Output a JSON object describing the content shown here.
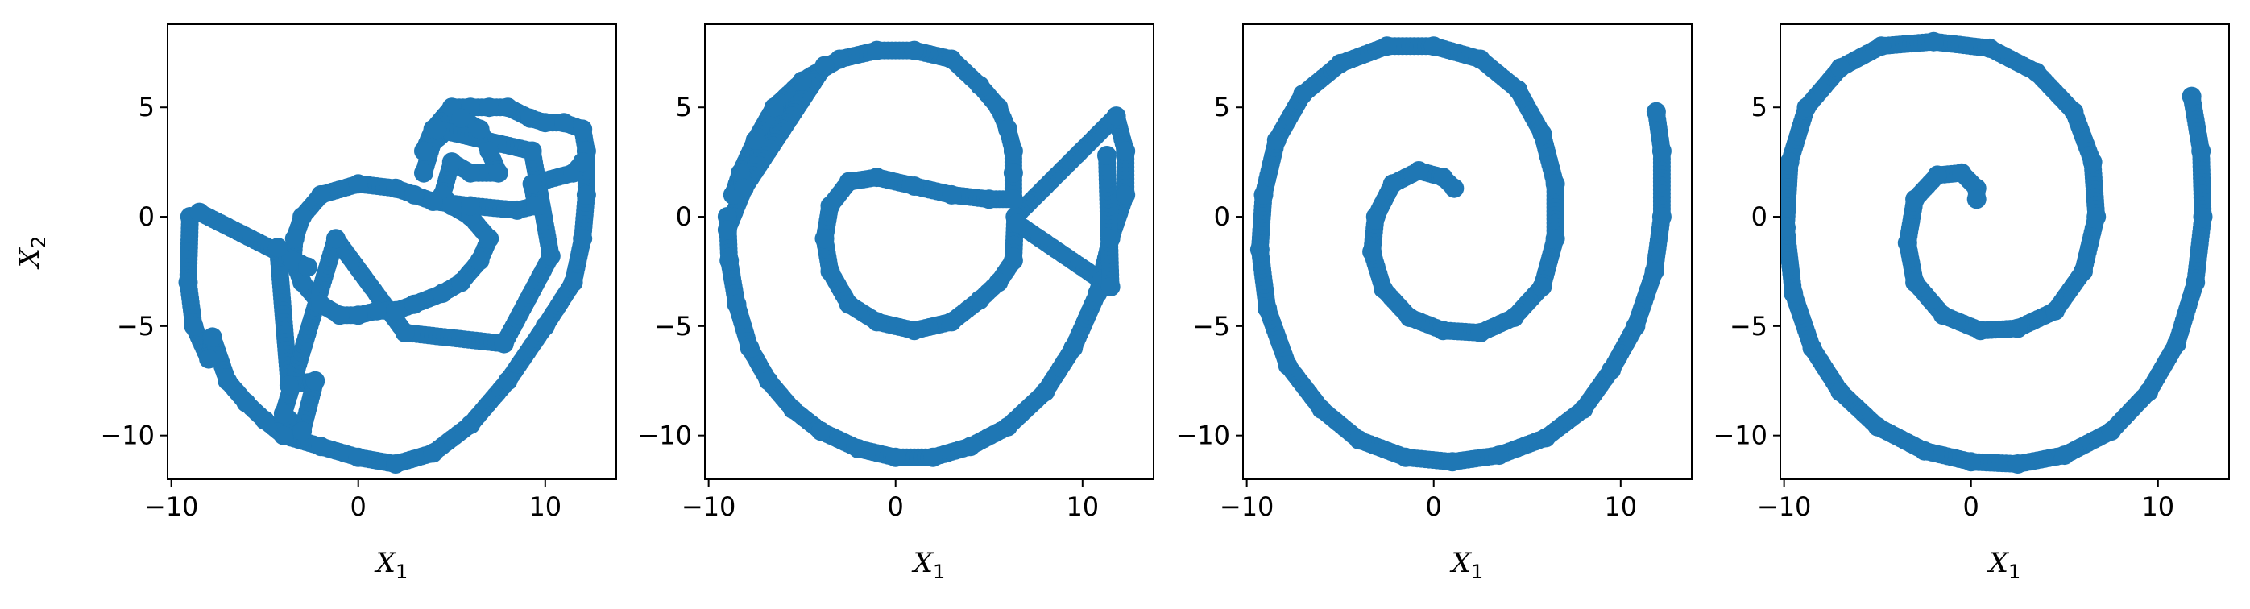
{
  "chart_data": [
    {
      "type": "scatter",
      "xlabel": "X",
      "xlabel_sub": "1",
      "ylabel": "X",
      "ylabel_sub": "2",
      "xlim": [
        -10.2,
        13.8
      ],
      "ylim": [
        -12.0,
        8.8
      ],
      "xticks": [
        -10,
        0,
        10
      ],
      "yticks": [
        5,
        0,
        -5,
        -10
      ],
      "grid": false,
      "color": "#1f77b4",
      "series": [
        {
          "points": [
            [
              -9.0,
              0.0
            ],
            [
              -9.1,
              -3.0
            ],
            [
              -8.8,
              -5.0
            ],
            [
              -8.0,
              -6.5
            ],
            [
              -7.8,
              -5.5
            ],
            [
              -7.0,
              -7.5
            ],
            [
              -6.0,
              -8.5
            ],
            [
              -5.0,
              -9.3
            ],
            [
              -4.0,
              -10.0
            ],
            [
              -2.0,
              -10.5
            ],
            [
              0.0,
              -11.0
            ],
            [
              2.0,
              -11.3
            ],
            [
              4.0,
              -10.8
            ],
            [
              6.0,
              -9.5
            ],
            [
              8.0,
              -7.5
            ],
            [
              10.0,
              -5.0
            ],
            [
              11.5,
              -3.0
            ],
            [
              12.0,
              -1.0
            ],
            [
              12.2,
              1.0
            ],
            [
              12.2,
              3.0
            ],
            [
              12.0,
              4.0
            ],
            [
              11.0,
              4.3
            ],
            [
              10.0,
              4.3
            ],
            [
              9.2,
              4.5
            ],
            [
              8.0,
              5.0
            ],
            [
              7.0,
              5.0
            ],
            [
              6.0,
              5.0
            ],
            [
              5.0,
              5.0
            ],
            [
              4.0,
              4.0
            ],
            [
              3.5,
              3.0
            ],
            [
              5.5,
              4.5
            ],
            [
              6.5,
              4.0
            ],
            [
              7.0,
              3.0
            ],
            [
              7.5,
              2.0
            ],
            [
              6.0,
              2.0
            ],
            [
              5.0,
              2.5
            ],
            [
              4.5,
              1.0
            ],
            [
              5.0,
              0.5
            ],
            [
              6.0,
              0.0
            ],
            [
              7.0,
              -1.0
            ],
            [
              6.5,
              -2.0
            ],
            [
              5.5,
              -3.0
            ],
            [
              4.5,
              -3.5
            ],
            [
              3.0,
              -4.0
            ],
            [
              2.0,
              -4.3
            ],
            [
              1.0,
              -4.3
            ],
            [
              0.0,
              -4.5
            ],
            [
              -1.0,
              -4.5
            ],
            [
              -2.0,
              -4.0
            ],
            [
              -3.0,
              -3.0
            ],
            [
              -3.5,
              -2.0
            ],
            [
              -3.4,
              -1.0
            ],
            [
              -3.0,
              0.0
            ],
            [
              -2.0,
              1.0
            ],
            [
              0.0,
              1.5
            ],
            [
              2.0,
              1.3
            ],
            [
              3.0,
              1.0
            ],
            [
              4.0,
              0.7
            ],
            [
              6.0,
              0.5
            ],
            [
              8.5,
              0.3
            ],
            [
              9.5,
              0.5
            ],
            [
              9.3,
              1.5
            ],
            [
              11.5,
              2.0
            ],
            [
              12.0,
              2.5
            ],
            [
              -4.3,
              -1.4
            ],
            [
              -3.7,
              -7.7
            ],
            [
              -2.3,
              -7.5
            ],
            [
              -3.0,
              -9.8
            ],
            [
              -4.0,
              -9.0
            ],
            [
              -1.2,
              -1.0
            ],
            [
              2.5,
              -5.3
            ],
            [
              7.8,
              -5.8
            ],
            [
              10.3,
              -1.8
            ],
            [
              9.3,
              3.0
            ],
            [
              4.2,
              4.0
            ],
            [
              3.5,
              2.0
            ],
            [
              -8.5,
              0.2
            ],
            [
              -2.7,
              -2.3
            ]
          ]
        }
      ]
    },
    {
      "type": "scatter",
      "xlabel": "X",
      "xlabel_sub": "1",
      "xlim": [
        -10.2,
        13.8
      ],
      "ylim": [
        -12.0,
        8.8
      ],
      "xticks": [
        -10,
        0,
        10
      ],
      "yticks": [
        5,
        0,
        -5,
        -10
      ],
      "grid": false,
      "color": "#1f77b4",
      "series": [
        {
          "points": [
            [
              -9.0,
              0.0
            ],
            [
              -8.9,
              -2.0
            ],
            [
              -8.5,
              -4.0
            ],
            [
              -7.8,
              -6.0
            ],
            [
              -6.8,
              -7.5
            ],
            [
              -5.5,
              -8.8
            ],
            [
              -4.0,
              -9.8
            ],
            [
              -2.0,
              -10.6
            ],
            [
              0.0,
              -11.0
            ],
            [
              2.0,
              -11.0
            ],
            [
              4.0,
              -10.5
            ],
            [
              6.0,
              -9.6
            ],
            [
              8.0,
              -8.0
            ],
            [
              9.5,
              -6.0
            ],
            [
              10.8,
              -3.5
            ],
            [
              11.5,
              -1.0
            ],
            [
              12.3,
              1.0
            ],
            [
              12.3,
              3.0
            ],
            [
              11.8,
              4.6
            ],
            [
              6.4,
              0.0
            ],
            [
              6.3,
              -2.0
            ],
            [
              5.5,
              -3.0
            ],
            [
              4.5,
              -3.8
            ],
            [
              3.0,
              -4.8
            ],
            [
              1.0,
              -5.2
            ],
            [
              -1.0,
              -4.8
            ],
            [
              -2.5,
              -4.0
            ],
            [
              -3.5,
              -2.5
            ],
            [
              -3.8,
              -1.0
            ],
            [
              -3.5,
              0.5
            ],
            [
              -2.5,
              1.6
            ],
            [
              -1.0,
              1.8
            ],
            [
              1.0,
              1.4
            ],
            [
              3.0,
              1.0
            ],
            [
              5.0,
              0.8
            ],
            [
              6.3,
              0.8
            ],
            [
              6.3,
              2.0
            ],
            [
              6.3,
              3.0
            ],
            [
              6.0,
              4.0
            ],
            [
              5.5,
              5.0
            ],
            [
              4.5,
              6.0
            ],
            [
              3.0,
              7.2
            ],
            [
              1.0,
              7.6
            ],
            [
              -1.0,
              7.6
            ],
            [
              -3.0,
              7.2
            ],
            [
              -5.0,
              6.2
            ],
            [
              -6.5,
              5.0
            ],
            [
              -7.5,
              3.5
            ],
            [
              -8.3,
              2.0
            ],
            [
              -8.7,
              1.0
            ],
            [
              -3.8,
              6.9
            ],
            [
              -8.1,
              1.3
            ],
            [
              -9.0,
              -0.6
            ],
            [
              6.5,
              -0.3
            ],
            [
              11.5,
              -3.2
            ],
            [
              11.3,
              2.8
            ]
          ]
        }
      ]
    },
    {
      "type": "scatter",
      "xlabel": "X",
      "xlabel_sub": "1",
      "xlim": [
        -10.2,
        13.8
      ],
      "ylim": [
        -12.0,
        8.8
      ],
      "xticks": [
        -10,
        0,
        10
      ],
      "yticks": [
        5,
        0,
        -5,
        -10
      ],
      "grid": false,
      "color": "#1f77b4",
      "series": [
        {
          "points": [
            [
              11.9,
              4.8
            ],
            [
              12.2,
              3.0
            ],
            [
              12.2,
              0.0
            ],
            [
              11.8,
              -2.5
            ],
            [
              10.8,
              -5.0
            ],
            [
              9.5,
              -7.0
            ],
            [
              8.0,
              -8.8
            ],
            [
              6.0,
              -10.1
            ],
            [
              3.5,
              -10.9
            ],
            [
              1.0,
              -11.2
            ],
            [
              -1.5,
              -11.0
            ],
            [
              -4.0,
              -10.2
            ],
            [
              -6.0,
              -8.8
            ],
            [
              -7.8,
              -6.8
            ],
            [
              -8.9,
              -4.2
            ],
            [
              -9.3,
              -1.5
            ],
            [
              -9.1,
              1.0
            ],
            [
              -8.4,
              3.5
            ],
            [
              -7.0,
              5.6
            ],
            [
              -5.0,
              7.0
            ],
            [
              -2.5,
              7.8
            ],
            [
              0.0,
              7.8
            ],
            [
              2.5,
              7.2
            ],
            [
              4.5,
              5.8
            ],
            [
              5.8,
              3.8
            ],
            [
              6.5,
              1.5
            ],
            [
              6.5,
              -1.0
            ],
            [
              5.8,
              -3.2
            ],
            [
              4.3,
              -4.6
            ],
            [
              2.5,
              -5.3
            ],
            [
              0.5,
              -5.2
            ],
            [
              -1.3,
              -4.6
            ],
            [
              -2.7,
              -3.3
            ],
            [
              -3.3,
              -1.6
            ],
            [
              -3.1,
              0.0
            ],
            [
              -2.2,
              1.5
            ],
            [
              -0.8,
              2.1
            ],
            [
              0.5,
              1.8
            ],
            [
              1.1,
              1.3
            ]
          ]
        }
      ]
    },
    {
      "type": "scatter",
      "xlabel": "X",
      "xlabel_sub": "1",
      "xlim": [
        -10.2,
        13.8
      ],
      "ylim": [
        -12.0,
        8.8
      ],
      "xticks": [
        -10,
        0,
        10
      ],
      "yticks": [
        5,
        0,
        -5,
        -10
      ],
      "grid": false,
      "color": "#1f77b4",
      "series": [
        {
          "points": [
            [
              11.8,
              5.5
            ],
            [
              12.3,
              3.0
            ],
            [
              12.4,
              0.0
            ],
            [
              12.0,
              -3.0
            ],
            [
              11.0,
              -5.8
            ],
            [
              9.5,
              -8.0
            ],
            [
              7.5,
              -9.8
            ],
            [
              5.0,
              -10.9
            ],
            [
              2.5,
              -11.3
            ],
            [
              0.0,
              -11.2
            ],
            [
              -2.5,
              -10.7
            ],
            [
              -5.0,
              -9.6
            ],
            [
              -7.0,
              -8.0
            ],
            [
              -8.5,
              -6.0
            ],
            [
              -9.5,
              -3.5
            ],
            [
              -9.9,
              -0.5
            ],
            [
              -9.7,
              2.5
            ],
            [
              -8.8,
              5.0
            ],
            [
              -7.0,
              6.8
            ],
            [
              -4.8,
              7.8
            ],
            [
              -2.0,
              8.0
            ],
            [
              1.0,
              7.7
            ],
            [
              3.5,
              6.6
            ],
            [
              5.5,
              4.8
            ],
            [
              6.5,
              2.5
            ],
            [
              6.7,
              0.0
            ],
            [
              6.0,
              -2.5
            ],
            [
              4.5,
              -4.3
            ],
            [
              2.5,
              -5.1
            ],
            [
              0.5,
              -5.2
            ],
            [
              -1.5,
              -4.5
            ],
            [
              -3.0,
              -3.0
            ],
            [
              -3.4,
              -1.2
            ],
            [
              -3.0,
              0.8
            ],
            [
              -1.8,
              1.9
            ],
            [
              -0.5,
              2.0
            ],
            [
              0.3,
              1.3
            ],
            [
              0.3,
              0.8
            ]
          ]
        }
      ]
    }
  ]
}
